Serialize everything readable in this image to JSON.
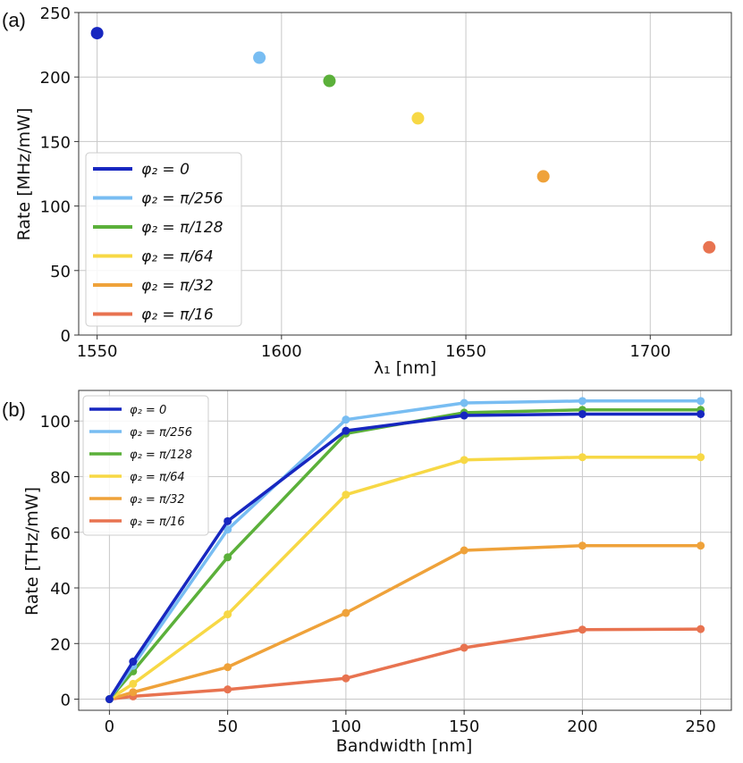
{
  "chart_data": [
    {
      "panel_label": "(a)",
      "type": "scatter",
      "xlabel": "λ₁ [nm]",
      "ylabel": "Rate [MHz/mW]",
      "xlim": [
        1545,
        1722
      ],
      "ylim": [
        0,
        250
      ],
      "xticks": [
        1550,
        1600,
        1650,
        1700
      ],
      "yticks": [
        0,
        50,
        100,
        150,
        200,
        250
      ],
      "xtick_labels": [
        "1550",
        "1600",
        "1650",
        "1700"
      ],
      "ytick_labels": [
        "0",
        "50",
        "100",
        "150",
        "200",
        "250"
      ],
      "grid": true,
      "legend_position": "lower-left",
      "series": [
        {
          "name": "φ₂ = 0",
          "color": "#1727c0",
          "x": [
            1550
          ],
          "y": [
            234
          ]
        },
        {
          "name": "φ₂ = π/256",
          "color": "#78bdf2",
          "x": [
            1594
          ],
          "y": [
            215
          ]
        },
        {
          "name": "φ₂ = π/128",
          "color": "#5bb03a",
          "x": [
            1613
          ],
          "y": [
            197
          ]
        },
        {
          "name": "φ₂ = π/64",
          "color": "#f7d845",
          "x": [
            1637
          ],
          "y": [
            168
          ]
        },
        {
          "name": "φ₂ = π/32",
          "color": "#efa23a",
          "x": [
            1671
          ],
          "y": [
            123
          ]
        },
        {
          "name": "φ₂ = π/16",
          "color": "#e87350",
          "x": [
            1716
          ],
          "y": [
            68
          ]
        }
      ]
    },
    {
      "panel_label": "(b)",
      "type": "line",
      "xlabel": "Bandwidth [nm]",
      "ylabel": "Rate [THz/mW]",
      "xlim": [
        -13,
        263
      ],
      "ylim": [
        -4,
        111
      ],
      "xticks": [
        0,
        50,
        100,
        150,
        200,
        250
      ],
      "yticks": [
        0,
        20,
        40,
        60,
        80,
        100
      ],
      "xtick_labels": [
        "0",
        "50",
        "100",
        "150",
        "200",
        "250"
      ],
      "ytick_labels": [
        "0",
        "20",
        "40",
        "60",
        "80",
        "100"
      ],
      "grid": true,
      "legend_position": "upper-left",
      "x": [
        0,
        10,
        50,
        100,
        150,
        200,
        250
      ],
      "series": [
        {
          "name": "φ₂ = 0",
          "color": "#1727c0",
          "values": [
            0,
            13.5,
            64,
            96.5,
            102,
            102.5,
            102.5
          ]
        },
        {
          "name": "φ₂ = π/256",
          "color": "#78bdf2",
          "values": [
            0,
            12,
            61,
            100.5,
            106.5,
            107.2,
            107.2
          ]
        },
        {
          "name": "φ₂ = π/128",
          "color": "#5bb03a",
          "values": [
            0,
            10,
            51,
            95.5,
            103,
            104,
            104
          ]
        },
        {
          "name": "φ₂ = π/64",
          "color": "#f7d845",
          "values": [
            0,
            5.5,
            30.5,
            73.5,
            86,
            87,
            87
          ]
        },
        {
          "name": "φ₂ = π/32",
          "color": "#efa23a",
          "values": [
            0,
            2.5,
            11.5,
            31,
            53.5,
            55.2,
            55.2
          ]
        },
        {
          "name": "φ₂ = π/16",
          "color": "#e87350",
          "values": [
            0,
            1,
            3.5,
            7.5,
            18.5,
            25,
            25.2
          ]
        }
      ]
    }
  ]
}
